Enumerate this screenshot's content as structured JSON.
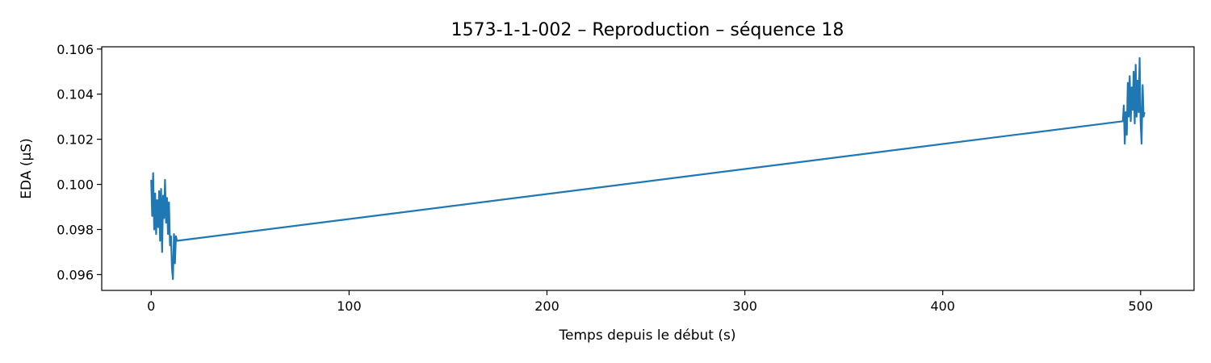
{
  "chart_data": {
    "type": "line",
    "title": "1573-1-1-002 – Reproduction – séquence 18",
    "xlabel": "Temps depuis le début (s)",
    "ylabel": "EDA (µS)",
    "xlim": [
      -25,
      527
    ],
    "ylim": [
      0.0953,
      0.1061
    ],
    "xticks": [
      0,
      100,
      200,
      300,
      400,
      500
    ],
    "yticks": [
      0.096,
      0.098,
      0.1,
      0.102,
      0.104,
      0.106
    ],
    "grid": false,
    "series": [
      {
        "color": "#1f77b4",
        "x": [
          0.0,
          0.5,
          1.0,
          1.5,
          2.0,
          2.5,
          3.0,
          3.5,
          4.0,
          4.5,
          5.0,
          5.5,
          6.0,
          6.5,
          7.0,
          7.5,
          8.0,
          8.5,
          9.0,
          9.5,
          10.0,
          10.5,
          11.0,
          11.5,
          12.0,
          12.5,
          13.0,
          491.0,
          491.5,
          492.0,
          492.5,
          493.0,
          493.5,
          494.0,
          494.5,
          495.0,
          495.5,
          496.0,
          496.5,
          497.0,
          497.5,
          498.0,
          498.5,
          499.0,
          499.5,
          500.0,
          500.5,
          501.0,
          501.5,
          502.0
        ],
        "y": [
          0.1002,
          0.0986,
          0.1005,
          0.098,
          0.0996,
          0.0978,
          0.0993,
          0.0981,
          0.0997,
          0.0975,
          0.0998,
          0.097,
          0.0995,
          0.0985,
          0.1002,
          0.0983,
          0.0994,
          0.0978,
          0.0992,
          0.0973,
          0.0977,
          0.0963,
          0.0958,
          0.0978,
          0.0965,
          0.0977,
          0.0975,
          0.1028,
          0.1035,
          0.1018,
          0.1032,
          0.1022,
          0.1045,
          0.103,
          0.1048,
          0.1028,
          0.1043,
          0.1033,
          0.105,
          0.1027,
          0.1053,
          0.103,
          0.1046,
          0.1032,
          0.1056,
          0.1028,
          0.1018,
          0.1044,
          0.103,
          0.1032
        ]
      }
    ]
  }
}
